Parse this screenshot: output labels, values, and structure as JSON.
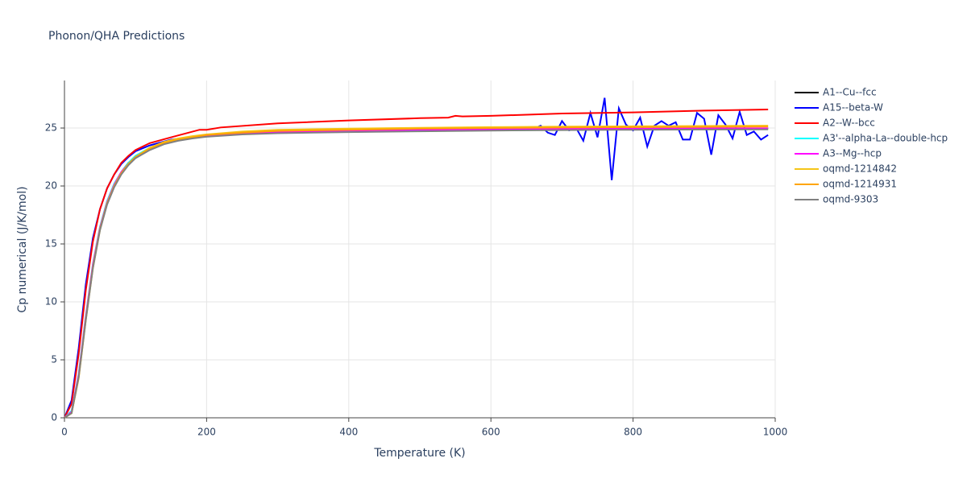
{
  "chart_data": {
    "type": "line",
    "title": "Phonon/QHA Predictions",
    "x_label": "Temperature (K)",
    "y_label": "Cp numerical (J/K/mol)",
    "xlim": [
      0,
      1000
    ],
    "ylim": [
      0,
      29.1
    ],
    "xticks": [
      0,
      200,
      400,
      600,
      800,
      1000
    ],
    "yticks": [
      0,
      5,
      10,
      15,
      20,
      25
    ],
    "grid": true,
    "legend": "right",
    "x": [
      0,
      10,
      20,
      30,
      40,
      50,
      60,
      70,
      80,
      90,
      100,
      120,
      140,
      160,
      180,
      200,
      250,
      300,
      400,
      500,
      600,
      700,
      800,
      900,
      990
    ],
    "series": [
      {
        "name": "A1--Cu--fcc",
        "color": "#000000",
        "values": [
          0,
          0.5,
          3.6,
          8.6,
          13.1,
          16.4,
          18.6,
          20.1,
          21.2,
          22,
          22.5,
          23.2,
          23.7,
          24,
          24.2,
          24.35,
          24.55,
          24.65,
          24.75,
          24.82,
          24.87,
          24.9,
          24.93,
          24.95,
          24.97
        ]
      },
      {
        "name": "A15--beta-W",
        "color": "#0000ff",
        "x": [
          0,
          10,
          20,
          30,
          40,
          50,
          60,
          70,
          80,
          90,
          100,
          120,
          150,
          200,
          300,
          400,
          500,
          600,
          660,
          670,
          680,
          690,
          700,
          710,
          720,
          730,
          740,
          750,
          760,
          770,
          780,
          790,
          800,
          810,
          820,
          830,
          840,
          850,
          860,
          870,
          880,
          890,
          900,
          910,
          920,
          930,
          940,
          950,
          960,
          970,
          980,
          990
        ],
        "values": [
          0,
          1.5,
          6,
          11.5,
          15.5,
          18,
          19.8,
          21,
          21.9,
          22.5,
          23,
          23.5,
          24,
          24.4,
          24.7,
          24.8,
          24.85,
          24.9,
          24.95,
          25.2,
          24.6,
          24.4,
          25.6,
          24.8,
          25,
          23.9,
          26.3,
          24.2,
          27.6,
          20.5,
          26.7,
          25.3,
          24.8,
          25.9,
          23.4,
          25.2,
          25.6,
          25.2,
          25.5,
          24,
          24,
          26.3,
          25.8,
          22.7,
          26.1,
          25.3,
          24.1,
          26.4,
          24.4,
          24.7,
          24,
          24.4
        ]
      },
      {
        "name": "A2--W--bcc",
        "color": "#ff0000",
        "x": [
          0,
          10,
          20,
          30,
          40,
          50,
          60,
          70,
          80,
          90,
          100,
          120,
          150,
          190,
          200,
          220,
          300,
          400,
          500,
          540,
          550,
          560,
          600,
          700,
          800,
          900,
          990
        ],
        "values": [
          0,
          1.2,
          5.5,
          11,
          15.2,
          18,
          19.8,
          21,
          22,
          22.6,
          23.1,
          23.7,
          24.2,
          24.85,
          24.85,
          25.05,
          25.4,
          25.65,
          25.85,
          25.9,
          26.05,
          26,
          26.05,
          26.25,
          26.35,
          26.5,
          26.6
        ]
      },
      {
        "name": "A3'--alpha-La--double-hcp",
        "color": "#00ffff",
        "values": [
          0,
          0.6,
          3.8,
          8.8,
          13.3,
          16.5,
          18.7,
          20.2,
          21.2,
          22,
          22.6,
          23.3,
          23.7,
          24,
          24.2,
          24.35,
          24.5,
          24.6,
          24.7,
          24.75,
          24.8,
          24.85,
          24.88,
          24.9,
          24.92
        ]
      },
      {
        "name": "A3--Mg--hcp",
        "color": "#ff00ff",
        "values": [
          0,
          0.5,
          3.7,
          8.7,
          13.2,
          16.4,
          18.6,
          20.1,
          21.2,
          21.9,
          22.5,
          23.2,
          23.7,
          24,
          24.2,
          24.35,
          24.55,
          24.65,
          24.78,
          24.85,
          24.9,
          24.93,
          24.95,
          24.97,
          24.98
        ]
      },
      {
        "name": "oqmd-1214842",
        "color": "#f5c518",
        "values": [
          0,
          0.4,
          3.4,
          8.4,
          12.9,
          16.2,
          18.5,
          20,
          21.1,
          21.9,
          22.5,
          23.3,
          23.8,
          24.1,
          24.3,
          24.45,
          24.7,
          24.85,
          24.95,
          25.02,
          25.08,
          25.12,
          25.15,
          25.18,
          25.2
        ]
      },
      {
        "name": "oqmd-1214931",
        "color": "#ffa500",
        "values": [
          0,
          0.4,
          3.5,
          8.5,
          13,
          16.3,
          18.5,
          20,
          21.1,
          21.9,
          22.5,
          23.2,
          23.7,
          24,
          24.2,
          24.4,
          24.6,
          24.75,
          24.85,
          24.95,
          25,
          25.05,
          25.08,
          25.1,
          25.12
        ]
      },
      {
        "name": "oqmd-9303",
        "color": "#808080",
        "values": [
          0,
          0.4,
          3.5,
          8.4,
          12.9,
          16.2,
          18.4,
          19.9,
          21,
          21.8,
          22.4,
          23.1,
          23.6,
          23.9,
          24.1,
          24.25,
          24.45,
          24.55,
          24.65,
          24.72,
          24.78,
          24.82,
          24.85,
          24.87,
          24.88
        ]
      }
    ]
  }
}
